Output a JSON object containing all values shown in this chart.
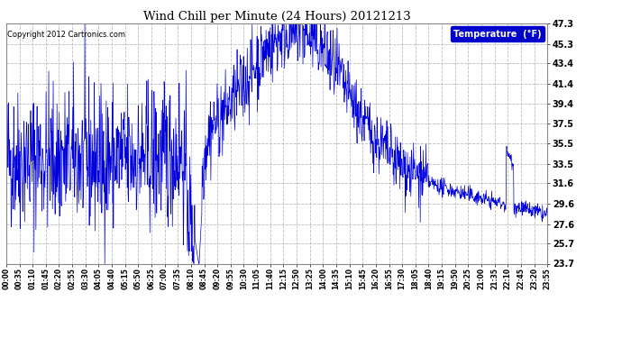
{
  "title": "Wind Chill per Minute (24 Hours) 20121213",
  "copyright": "Copyright 2012 Cartronics.com",
  "legend_label": "Temperature  (°F)",
  "line_color": "#0000dd",
  "background_color": "#ffffff",
  "grid_color": "#bbbbbb",
  "yticks": [
    23.7,
    25.7,
    27.6,
    29.6,
    31.6,
    33.5,
    35.5,
    37.5,
    39.4,
    41.4,
    43.4,
    45.3,
    47.3
  ],
  "ymin": 23.7,
  "ymax": 47.3,
  "xtick_labels": [
    "00:00",
    "00:35",
    "01:10",
    "01:45",
    "02:20",
    "02:55",
    "03:30",
    "04:05",
    "04:40",
    "05:15",
    "05:50",
    "06:25",
    "07:00",
    "07:35",
    "08:10",
    "08:45",
    "09:20",
    "09:55",
    "10:30",
    "11:05",
    "11:40",
    "12:15",
    "12:50",
    "13:25",
    "14:00",
    "14:35",
    "15:10",
    "15:45",
    "16:20",
    "16:55",
    "17:30",
    "18:05",
    "18:40",
    "19:15",
    "19:50",
    "20:25",
    "21:00",
    "21:35",
    "22:10",
    "22:45",
    "23:20",
    "23:55"
  ]
}
